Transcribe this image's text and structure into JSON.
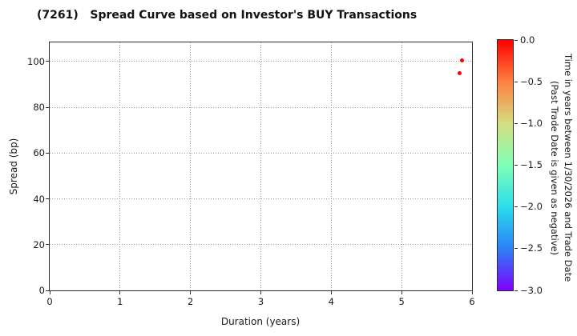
{
  "colors": {
    "background": "#ffffff",
    "text": "#1a1a1a",
    "spine": "#2b2b2b",
    "grid": "#9a9a9a",
    "point_red": "#ff0000"
  },
  "chart_data": {
    "type": "scatter",
    "title": "(7261)   Spread Curve based on Investor's BUY Transactions",
    "xlabel": "Duration (years)",
    "ylabel": "Spread (bp)",
    "xlim": [
      0,
      6
    ],
    "ylim": [
      0,
      108.3
    ],
    "xticks": [
      0,
      1,
      2,
      3,
      4,
      5,
      6
    ],
    "yticks": [
      0,
      20,
      40,
      60,
      80,
      100
    ],
    "grid": true,
    "grid_style": "dotted",
    "legend_position": "none",
    "points": [
      {
        "duration": 5.86,
        "spread": 100.4,
        "time_value": 0.0,
        "color": "#ff0000"
      },
      {
        "duration": 5.82,
        "spread": 95.0,
        "time_value": 0.0,
        "color": "#ff0000"
      }
    ],
    "colorbar": {
      "label_line1": "Time in years between 1/30/2026 and Trade Date",
      "label_line2": "(Past Trade Date is given as negative)",
      "vmax": 0.0,
      "vmin": -3.0,
      "tick_labels": [
        "0.0",
        "−0.5",
        "−1.0",
        "−1.5",
        "−2.0",
        "−2.5",
        "−3.0"
      ],
      "gradient_top_to_bottom": [
        "#ff0000",
        "#ff8042",
        "#d5dd80",
        "#80ffb4",
        "#2bddec",
        "#2b80f6",
        "#8000ff"
      ]
    }
  }
}
